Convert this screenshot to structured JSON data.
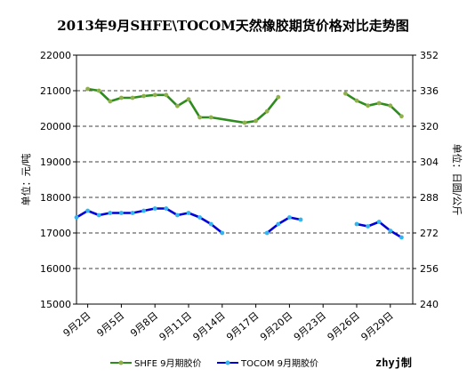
{
  "chart_data": {
    "type": "line",
    "title": "2013年9月SHFE\\TOCOM天然橡胶期货价格对比走势图",
    "ylabel_left": "单位：元/吨",
    "ylabel_right": "单位：日圆/公斤",
    "ylim_left": [
      15000,
      22000
    ],
    "yticks_left": [
      15000,
      16000,
      17000,
      18000,
      19000,
      20000,
      21000,
      22000
    ],
    "ylim_right": [
      240,
      352
    ],
    "yticks_right": [
      240,
      256,
      272,
      288,
      304,
      320,
      336,
      352
    ],
    "xlim": [
      1,
      31
    ],
    "xticks": [
      2,
      5,
      8,
      11,
      14,
      17,
      20,
      23,
      26,
      29
    ],
    "xtick_labels": [
      "9月2日",
      "9月5日",
      "9月8日",
      "9月11日",
      "9月14日",
      "9月17日",
      "9月20日",
      "9月23日",
      "9月26日",
      "9月29日"
    ],
    "grid": true,
    "legend_position": "bottom",
    "series": [
      {
        "name": "SHFE 9月期胶价",
        "axis": "left",
        "color": "#2e8b1e",
        "marker_color": "#8fb04a",
        "points": [
          [
            2,
            21050
          ],
          [
            3,
            21000
          ],
          [
            4,
            20700
          ],
          [
            5,
            20800
          ],
          [
            6,
            20800
          ],
          [
            7,
            20850
          ],
          [
            8,
            20880
          ],
          [
            9,
            20880
          ],
          [
            10,
            20570
          ],
          [
            11,
            20760
          ],
          [
            12,
            20250
          ],
          [
            13,
            20250
          ],
          [
            16,
            20100
          ],
          [
            17,
            20150
          ],
          [
            18,
            20420
          ],
          [
            19,
            20820
          ],
          null,
          [
            25,
            20920
          ],
          [
            26,
            20720
          ],
          [
            27,
            20580
          ],
          [
            28,
            20650
          ],
          [
            29,
            20580
          ],
          [
            30,
            20280
          ]
        ]
      },
      {
        "name": "TOCOM 9月期胶价",
        "axis": "right",
        "color": "#0000d8",
        "marker_color": "#33b5ee",
        "points": [
          [
            1,
            279
          ],
          [
            2,
            282
          ],
          [
            3,
            280
          ],
          [
            4,
            281
          ],
          [
            5,
            281
          ],
          [
            6,
            281
          ],
          [
            7,
            282
          ],
          [
            8,
            283
          ],
          [
            9,
            283
          ],
          [
            10,
            280
          ],
          [
            11,
            281
          ],
          [
            12,
            279
          ],
          [
            13,
            276
          ],
          [
            14,
            272
          ],
          null,
          [
            18,
            272
          ],
          [
            19,
            276
          ],
          [
            20,
            279
          ],
          [
            21,
            278
          ],
          null,
          [
            26,
            276
          ],
          [
            27,
            275
          ],
          [
            28,
            277
          ],
          [
            29,
            273
          ],
          [
            30,
            270
          ]
        ]
      }
    ],
    "watermark": "zhyj制"
  }
}
